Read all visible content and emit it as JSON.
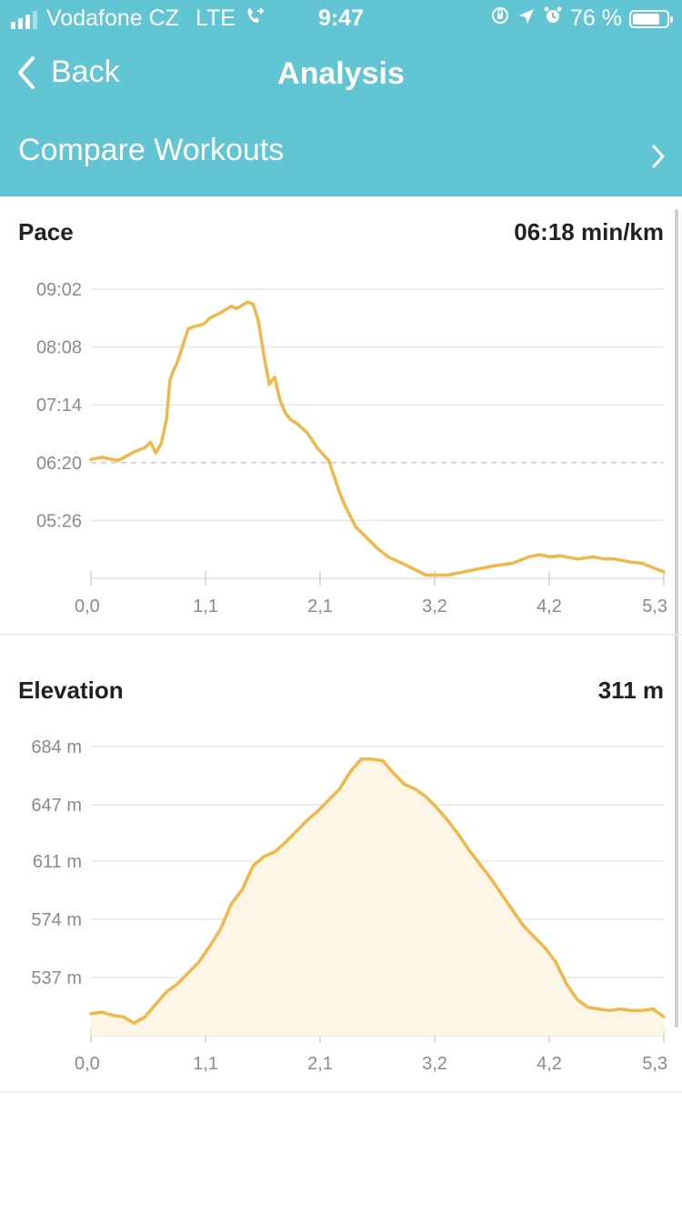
{
  "status_bar": {
    "carrier": "Vodafone CZ",
    "network": "LTE",
    "time": "9:47",
    "battery_percent": "76 %"
  },
  "nav": {
    "back_label": "Back",
    "title": "Analysis"
  },
  "compare": {
    "label": "Compare Workouts"
  },
  "colors": {
    "header_bg": "#61c5d4",
    "accent_line": "#f0b84a",
    "area_fill": "#fdf5e6"
  },
  "pace": {
    "title": "Pace",
    "value": "06:18 min/km",
    "chart_data": {
      "type": "line",
      "x_ticks": [
        "0,0",
        "1,1",
        "2,1",
        "3,2",
        "4,2",
        "5,3"
      ],
      "y_ticks": [
        "09:02",
        "08:08",
        "07:14",
        "06:20",
        "05:26"
      ],
      "y_tick_seconds": [
        542,
        488,
        434,
        380,
        326
      ],
      "ylim_seconds": [
        272,
        542
      ],
      "xlim": [
        0,
        5.3
      ],
      "average_line_seconds": 380,
      "x": [
        0,
        0.1,
        0.25,
        0.4,
        0.5,
        0.55,
        0.6,
        0.65,
        0.7,
        0.73,
        0.76,
        0.8,
        0.9,
        0.95,
        1.0,
        1.05,
        1.1,
        1.2,
        1.3,
        1.35,
        1.45,
        1.5,
        1.55,
        1.6,
        1.65,
        1.7,
        1.75,
        1.8,
        1.85,
        1.9,
        2.0,
        2.1,
        2.2,
        2.3,
        2.35,
        2.45,
        2.55,
        2.65,
        2.75,
        2.9,
        3.1,
        3.3,
        3.45,
        3.6,
        3.75,
        3.9,
        4.05,
        4.15,
        4.25,
        4.35,
        4.5,
        4.65,
        4.75,
        4.85,
        5.0,
        5.1,
        5.2,
        5.3
      ],
      "y_seconds": [
        383,
        385,
        382,
        390,
        394,
        399,
        389,
        398,
        421,
        457,
        465,
        474,
        505,
        507,
        508,
        510,
        515,
        520,
        526,
        524,
        530,
        528,
        512,
        480,
        453,
        460,
        438,
        426,
        420,
        417,
        408,
        393,
        382,
        352,
        340,
        320,
        310,
        300,
        292,
        285,
        275,
        275,
        278,
        281,
        284,
        286,
        292,
        294,
        292,
        293,
        290,
        292,
        290,
        290,
        287,
        286,
        282,
        278
      ]
    }
  },
  "elevation": {
    "title": "Elevation",
    "value": "311 m",
    "chart_data": {
      "type": "area",
      "x_ticks": [
        "0,0",
        "1,1",
        "2,1",
        "3,2",
        "4,2",
        "5,3"
      ],
      "y_ticks": [
        "684 m",
        "647 m",
        "611 m",
        "574 m",
        "537 m"
      ],
      "y_tick_values": [
        684,
        647,
        611,
        574,
        537
      ],
      "ylim": [
        500,
        684
      ],
      "xlim": [
        0,
        5.3
      ],
      "x": [
        0,
        0.1,
        0.2,
        0.3,
        0.4,
        0.5,
        0.6,
        0.7,
        0.8,
        0.9,
        1.0,
        1.1,
        1.2,
        1.3,
        1.4,
        1.5,
        1.6,
        1.7,
        1.8,
        1.9,
        2.0,
        2.1,
        2.2,
        2.3,
        2.4,
        2.5,
        2.6,
        2.7,
        2.8,
        2.9,
        3.0,
        3.1,
        3.2,
        3.3,
        3.4,
        3.5,
        3.6,
        3.7,
        3.8,
        3.9,
        4.0,
        4.1,
        4.2,
        4.3,
        4.4,
        4.5,
        4.6,
        4.7,
        4.8,
        4.9,
        5.0,
        5.1,
        5.2,
        5.3
      ],
      "y": [
        514,
        515,
        513,
        512,
        508,
        512,
        520,
        528,
        533,
        540,
        547,
        557,
        568,
        584,
        593,
        608,
        614,
        617,
        623,
        630,
        637,
        643,
        650,
        657,
        668,
        676,
        676,
        675,
        667,
        660,
        657,
        652,
        645,
        637,
        628,
        618,
        609,
        600,
        590,
        580,
        570,
        563,
        556,
        547,
        533,
        523,
        518,
        517,
        516,
        517,
        516,
        516,
        517,
        512
      ]
    }
  }
}
